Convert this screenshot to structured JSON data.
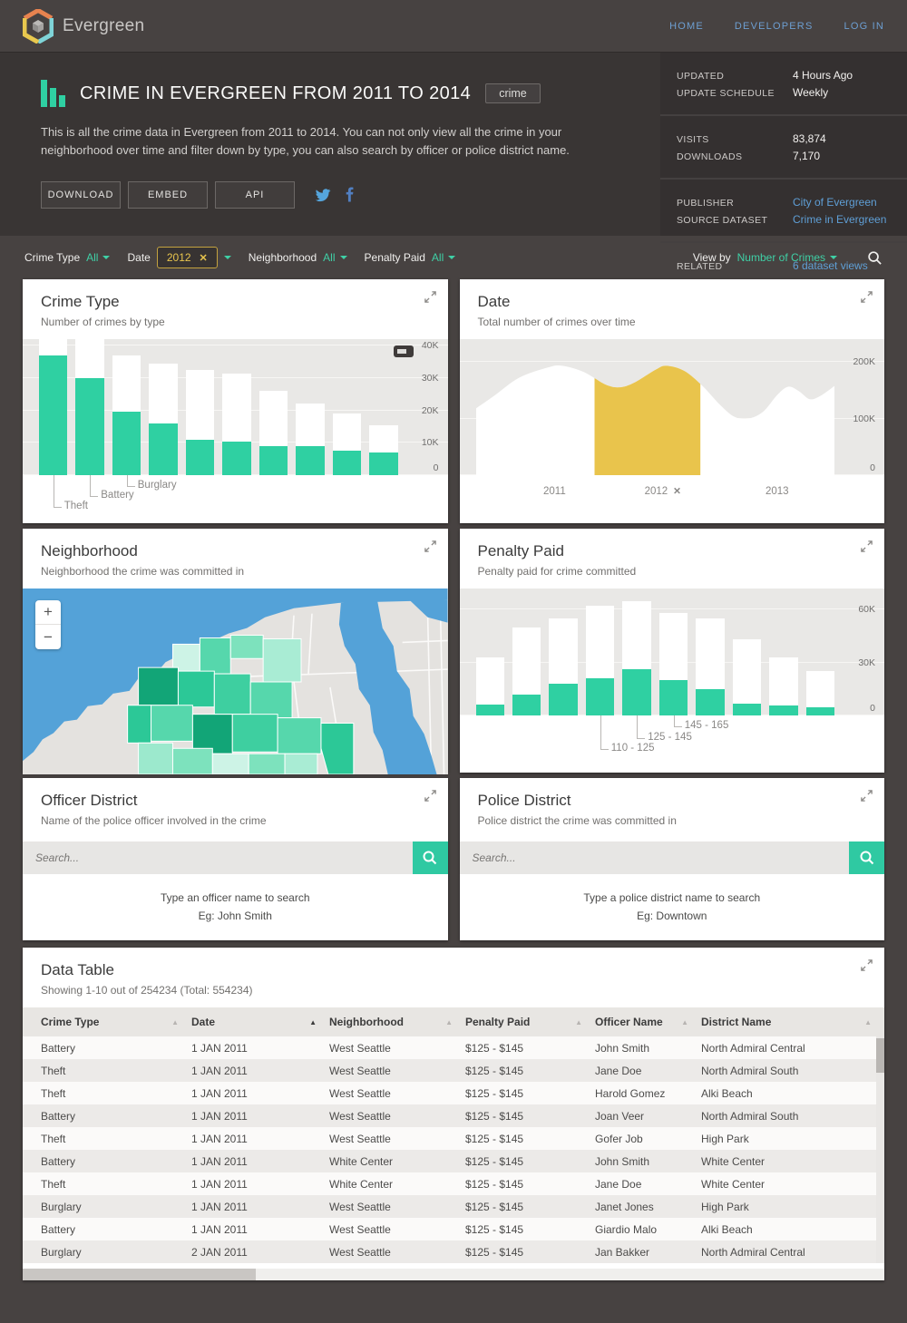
{
  "colors": {
    "accent_green": "#2fd0a2",
    "highlight_gold": "#e9c44c",
    "link_blue": "#5f9fd6",
    "chip_gold": "#e8c54d"
  },
  "nav": {
    "brand": "Evergreen",
    "links": [
      "HOME",
      "DEVELOPERS",
      "LOG IN"
    ]
  },
  "header": {
    "title": "CRIME IN EVERGREEN FROM 2011 TO 2014",
    "tag": "crime",
    "description": "This is all the crime data in Evergreen from 2011 to 2014. You can not only view all the crime in your neighborhood over time and filter down by type, you can also search by officer or police district name.",
    "buttons": [
      "DOWNLOAD",
      "EMBED",
      "API"
    ],
    "social_icons": [
      "twitter-icon",
      "facebook-icon"
    ]
  },
  "meta": {
    "sections": [
      {
        "rows": [
          {
            "label": "UPDATED",
            "value": "4 Hours Ago",
            "link": false
          },
          {
            "label": "UPDATE SCHEDULE",
            "value": "Weekly",
            "link": false
          }
        ]
      },
      {
        "rows": [
          {
            "label": "VISITS",
            "value": "83,874",
            "link": false
          },
          {
            "label": "DOWNLOADS",
            "value": "7,170",
            "link": false
          }
        ]
      },
      {
        "rows": [
          {
            "label": "PUBLISHER",
            "value": "City of Evergreen",
            "link": true
          },
          {
            "label": "SOURCE DATASET",
            "value": "Crime in Evergreen",
            "link": true
          }
        ]
      },
      {
        "rows": [
          {
            "label": "RELATED",
            "value": "6 dataset views",
            "link": true
          }
        ]
      }
    ]
  },
  "filters": {
    "crime_type_label": "Crime Type",
    "crime_type_value": "All",
    "date_label": "Date",
    "date_value": "2012",
    "neighborhood_label": "Neighborhood",
    "neighborhood_value": "All",
    "penalty_label": "Penalty Paid",
    "penalty_value": "All",
    "view_by_label": "View by",
    "view_by_value": "Number of Crimes"
  },
  "cards": {
    "crime_type": {
      "title": "Crime Type",
      "subtitle": "Number of crimes by type"
    },
    "date": {
      "title": "Date",
      "subtitle": "Total number of crimes over time"
    },
    "neighborhood": {
      "title": "Neighborhood",
      "subtitle": "Neighborhood the crime was committed in",
      "zoom_in": "+",
      "zoom_out": "−"
    },
    "penalty": {
      "title": "Penalty Paid",
      "subtitle": "Penalty paid for crime committed"
    },
    "officer": {
      "title": "Officer District",
      "subtitle": "Name of the police officer involved in the crime",
      "placeholder": "Search...",
      "help_line1": "Type an officer name to search",
      "help_line2": "Eg: John Smith"
    },
    "police": {
      "title": "Police District",
      "subtitle": "Police district the crime was committed in",
      "placeholder": "Search...",
      "help_line1": "Type a police district name to search",
      "help_line2": "Eg: Downtown"
    }
  },
  "chart_data": [
    {
      "name": "crime_type",
      "type": "bar",
      "title": "Crime Type",
      "subtitle": "Number of crimes by type",
      "unit": "thousands of crimes",
      "ylim": [
        0,
        42
      ],
      "legend_position": "none",
      "grid": true,
      "ticks": [
        {
          "label": "40K",
          "value": 40
        },
        {
          "label": "30K",
          "value": 30
        },
        {
          "label": "20K",
          "value": 20
        },
        {
          "label": "10K",
          "value": 10
        },
        {
          "label": "0",
          "value": 0
        }
      ],
      "series": [
        {
          "name": "total",
          "color": "#ffffff",
          "values": [
            42,
            42,
            37,
            34.5,
            32.5,
            31.5,
            26,
            22,
            19,
            15.5
          ]
        },
        {
          "name": "filtered",
          "color": "#2fd0a2",
          "values": [
            37,
            30,
            19.5,
            16,
            11,
            10.5,
            9,
            9,
            7.5,
            7
          ]
        }
      ],
      "bar_labels": [
        {
          "bar": 0,
          "label": "Theft"
        },
        {
          "bar": 1,
          "label": "Battery"
        },
        {
          "bar": 2,
          "label": "Burglary"
        }
      ]
    },
    {
      "name": "date",
      "type": "area",
      "title": "Date",
      "subtitle": "Total number of crimes over time",
      "unit": "thousands of crimes",
      "ylim": [
        0,
        240
      ],
      "grid": true,
      "ticks": [
        {
          "label": "200K",
          "value": 200
        },
        {
          "label": "100K",
          "value": 100
        },
        {
          "label": "0",
          "value": 0
        }
      ],
      "points": [
        [
          0,
          118
        ],
        [
          0.05,
          140
        ],
        [
          0.12,
          172
        ],
        [
          0.2,
          190
        ],
        [
          0.24,
          193
        ],
        [
          0.3,
          182
        ],
        [
          0.36,
          160
        ],
        [
          0.4,
          155
        ],
        [
          0.44,
          163
        ],
        [
          0.5,
          186
        ],
        [
          0.53,
          193
        ],
        [
          0.58,
          184
        ],
        [
          0.63,
          158
        ],
        [
          0.68,
          124
        ],
        [
          0.72,
          103
        ],
        [
          0.76,
          100
        ],
        [
          0.8,
          112
        ],
        [
          0.84,
          142
        ],
        [
          0.87,
          156
        ],
        [
          0.9,
          148
        ],
        [
          0.93,
          134
        ],
        [
          0.96,
          140
        ],
        [
          1,
          158
        ]
      ],
      "highlight_range": [
        0.33,
        0.625
      ],
      "highlight_label": "2012",
      "x_labels": [
        {
          "label": "2011",
          "pos": 0.2,
          "removable": false
        },
        {
          "label": "2012",
          "pos": 0.475,
          "removable": true
        },
        {
          "label": "2013",
          "pos": 0.765,
          "removable": false
        }
      ]
    },
    {
      "name": "penalty_paid",
      "type": "bar",
      "title": "Penalty Paid",
      "subtitle": "Penalty paid for crime committed",
      "unit": "thousands of crimes",
      "ylim": [
        0,
        72
      ],
      "grid": true,
      "ticks": [
        {
          "label": "60K",
          "value": 60
        },
        {
          "label": "30K",
          "value": 30
        },
        {
          "label": "0",
          "value": 0
        }
      ],
      "series": [
        {
          "name": "total",
          "color": "#ffffff",
          "values": [
            33,
            50,
            55,
            62,
            65,
            58,
            55,
            43,
            33,
            25
          ]
        },
        {
          "name": "filtered",
          "color": "#2fd0a2",
          "values": [
            6,
            12,
            18,
            21,
            26,
            20,
            15,
            6.5,
            5.5,
            4.5
          ]
        }
      ],
      "bar_labels": [
        {
          "bar": 3,
          "label": "110 - 125"
        },
        {
          "bar": 4,
          "label": "125 - 145"
        },
        {
          "bar": 5,
          "label": "145 - 165"
        }
      ]
    }
  ],
  "table": {
    "title": "Data Table",
    "subtitle": "Showing 1-10 out of 254234 (Total: 554234)",
    "columns": [
      {
        "label": "Crime Type",
        "sorted": false
      },
      {
        "label": "Date",
        "sorted": true
      },
      {
        "label": "Neighborhood",
        "sorted": false
      },
      {
        "label": "Penalty Paid",
        "sorted": false
      },
      {
        "label": "Officer Name",
        "sorted": false
      },
      {
        "label": "District Name",
        "sorted": false
      }
    ],
    "rows": [
      [
        "Battery",
        "1 JAN 2011",
        "West Seattle",
        "$125 - $145",
        "John Smith",
        "North Admiral Central"
      ],
      [
        "Theft",
        "1 JAN 2011",
        "West Seattle",
        "$125 - $145",
        "Jane Doe",
        "North Admiral South"
      ],
      [
        "Theft",
        "1 JAN 2011",
        "West Seattle",
        "$125 - $145",
        "Harold Gomez",
        "Alki Beach"
      ],
      [
        "Battery",
        "1 JAN 2011",
        "West Seattle",
        "$125 - $145",
        "Joan Veer",
        "North Admiral South"
      ],
      [
        "Theft",
        "1 JAN 2011",
        "West Seattle",
        "$125 - $145",
        "Gofer Job",
        "High Park"
      ],
      [
        "Battery",
        "1 JAN 2011",
        "White Center",
        "$125 - $145",
        "John Smith",
        "White Center"
      ],
      [
        "Theft",
        "1 JAN 2011",
        "White Center",
        "$125 - $145",
        "Jane Doe",
        "White Center"
      ],
      [
        "Burglary",
        "1 JAN 2011",
        "West Seattle",
        "$125 - $145",
        "Janet Jones",
        "High Park"
      ],
      [
        "Battery",
        "1 JAN 2011",
        "West Seattle",
        "$125 - $145",
        "Giardio Malo",
        "Alki Beach"
      ],
      [
        "Burglary",
        "2 JAN 2011",
        "West Seattle",
        "$125 - $145",
        "Jan Bakker",
        "North Admiral Central"
      ]
    ]
  }
}
